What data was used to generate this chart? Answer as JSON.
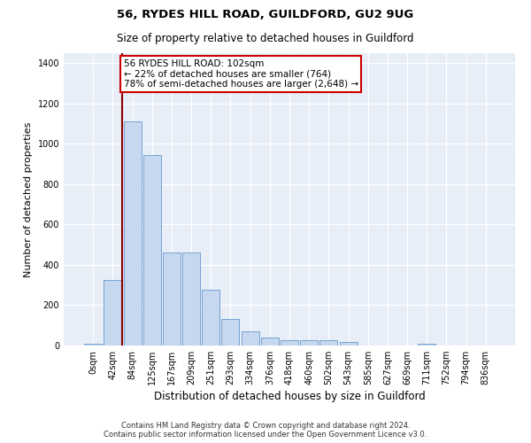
{
  "title1": "56, RYDES HILL ROAD, GUILDFORD, GU2 9UG",
  "title2": "Size of property relative to detached houses in Guildford",
  "xlabel": "Distribution of detached houses by size in Guildford",
  "ylabel": "Number of detached properties",
  "footnote1": "Contains HM Land Registry data © Crown copyright and database right 2024.",
  "footnote2": "Contains public sector information licensed under the Open Government Licence v3.0.",
  "bar_labels": [
    "0sqm",
    "42sqm",
    "84sqm",
    "125sqm",
    "167sqm",
    "209sqm",
    "251sqm",
    "293sqm",
    "334sqm",
    "376sqm",
    "418sqm",
    "460sqm",
    "502sqm",
    "543sqm",
    "585sqm",
    "627sqm",
    "669sqm",
    "711sqm",
    "752sqm",
    "794sqm",
    "836sqm"
  ],
  "bar_values": [
    10,
    325,
    1110,
    945,
    460,
    460,
    275,
    130,
    70,
    40,
    25,
    25,
    25,
    18,
    0,
    0,
    0,
    10,
    0,
    0,
    0
  ],
  "bar_color": "#c5d8f0",
  "bar_edge_color": "#6699cc",
  "bg_color": "#e8eef8",
  "vline_x": 1.5,
  "vline_color": "#8b0000",
  "annotation_text": "56 RYDES HILL ROAD: 102sqm\n← 22% of detached houses are smaller (764)\n78% of semi-detached houses are larger (2,648) →",
  "annotation_box_color": "#cc0000",
  "ylim": [
    0,
    1450
  ],
  "yticks": [
    0,
    200,
    400,
    600,
    800,
    1000,
    1200,
    1400
  ],
  "figsize": [
    6.0,
    5.0
  ],
  "dpi": 100
}
